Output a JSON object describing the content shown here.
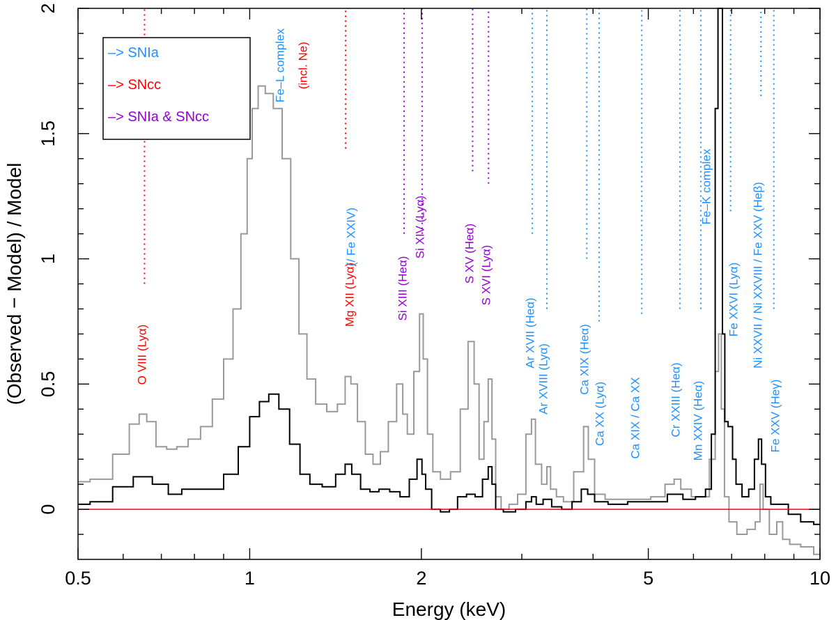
{
  "chart_data": {
    "type": "line",
    "title": "",
    "xlabel": "Energy (keV)",
    "ylabel": "(Observed − Model) / Model",
    "xscale": "log",
    "xlim": [
      0.5,
      10
    ],
    "ylim": [
      -0.2,
      2
    ],
    "x_ticks": [
      {
        "v": 0.5,
        "label": "0.5"
      },
      {
        "v": 1,
        "label": "1"
      },
      {
        "v": 2,
        "label": "2"
      },
      {
        "v": 5,
        "label": "5"
      },
      {
        "v": 10,
        "label": "10"
      }
    ],
    "y_ticks": [
      {
        "v": 0,
        "label": "0"
      },
      {
        "v": 0.5,
        "label": "0.5"
      },
      {
        "v": 1,
        "label": "1"
      },
      {
        "v": 1.5,
        "label": "1.5"
      },
      {
        "v": 2,
        "label": "2"
      }
    ],
    "reference_line": {
      "y": 0,
      "color": "#ff0000"
    },
    "colors": {
      "snia": "#1e90ff",
      "sncc": "#ff0000",
      "both": "#9400d3"
    },
    "legend": {
      "placement": "top-left",
      "entries": [
        {
          "text": "–> SNIa",
          "color": "#1e90ff"
        },
        {
          "text": "–> SNcc",
          "color": "#ff0000"
        },
        {
          "text": "–> SNIa & SNcc",
          "color": "#9400d3"
        }
      ]
    },
    "series": [
      {
        "name": "gray residuals",
        "color": "#999999",
        "points": [
          [
            0.5,
            0.11
          ],
          [
            0.55,
            0.12
          ],
          [
            0.6,
            0.22
          ],
          [
            0.63,
            0.34
          ],
          [
            0.65,
            0.38
          ],
          [
            0.67,
            0.35
          ],
          [
            0.7,
            0.25
          ],
          [
            0.73,
            0.24
          ],
          [
            0.76,
            0.25
          ],
          [
            0.8,
            0.28
          ],
          [
            0.84,
            0.33
          ],
          [
            0.88,
            0.44
          ],
          [
            0.92,
            0.6
          ],
          [
            0.95,
            0.8
          ],
          [
            0.98,
            1.1
          ],
          [
            1.0,
            1.4
          ],
          [
            1.02,
            1.6
          ],
          [
            1.05,
            1.69
          ],
          [
            1.08,
            1.66
          ],
          [
            1.12,
            1.6
          ],
          [
            1.16,
            1.4
          ],
          [
            1.2,
            1.0
          ],
          [
            1.24,
            0.7
          ],
          [
            1.28,
            0.52
          ],
          [
            1.33,
            0.42
          ],
          [
            1.4,
            0.39
          ],
          [
            1.45,
            0.42
          ],
          [
            1.49,
            0.53
          ],
          [
            1.52,
            0.5
          ],
          [
            1.57,
            0.35
          ],
          [
            1.62,
            0.22
          ],
          [
            1.67,
            0.18
          ],
          [
            1.72,
            0.23
          ],
          [
            1.78,
            0.35
          ],
          [
            1.84,
            0.5
          ],
          [
            1.87,
            0.38
          ],
          [
            1.91,
            0.3
          ],
          [
            1.97,
            0.55
          ],
          [
            2.0,
            0.78
          ],
          [
            2.03,
            0.6
          ],
          [
            2.07,
            0.3
          ],
          [
            2.12,
            0.15
          ],
          [
            2.2,
            0.12
          ],
          [
            2.3,
            0.15
          ],
          [
            2.38,
            0.4
          ],
          [
            2.45,
            0.67
          ],
          [
            2.5,
            0.5
          ],
          [
            2.55,
            0.2
          ],
          [
            2.6,
            0.35
          ],
          [
            2.64,
            0.52
          ],
          [
            2.68,
            0.28
          ],
          [
            2.72,
            0.05
          ],
          [
            2.8,
            0.0
          ],
          [
            2.9,
            0.02
          ],
          [
            3.0,
            0.06
          ],
          [
            3.1,
            0.3
          ],
          [
            3.14,
            0.36
          ],
          [
            3.2,
            0.18
          ],
          [
            3.3,
            0.1
          ],
          [
            3.34,
            0.17
          ],
          [
            3.4,
            0.08
          ],
          [
            3.5,
            0.05
          ],
          [
            3.6,
            0.03
          ],
          [
            3.8,
            0.15
          ],
          [
            3.9,
            0.33
          ],
          [
            3.95,
            0.2
          ],
          [
            4.1,
            0.06
          ],
          [
            4.3,
            0.04
          ],
          [
            4.6,
            0.04
          ],
          [
            4.9,
            0.04
          ],
          [
            5.2,
            0.05
          ],
          [
            5.5,
            0.1
          ],
          [
            5.6,
            0.12
          ],
          [
            5.8,
            0.08
          ],
          [
            6.1,
            0.05
          ],
          [
            6.3,
            0.05
          ],
          [
            6.5,
            0.2
          ],
          [
            6.6,
            0.55
          ],
          [
            6.68,
            0.7
          ],
          [
            6.75,
            0.4
          ],
          [
            6.85,
            0.05
          ],
          [
            7.0,
            -0.05
          ],
          [
            7.3,
            -0.1
          ],
          [
            7.6,
            -0.08
          ],
          [
            7.8,
            -0.05
          ],
          [
            7.9,
            0.1
          ],
          [
            8.0,
            0.0
          ],
          [
            8.3,
            -0.1
          ],
          [
            8.5,
            -0.05
          ],
          [
            8.7,
            -0.12
          ],
          [
            9.0,
            -0.14
          ],
          [
            9.5,
            -0.15
          ],
          [
            10.0,
            -0.18
          ]
        ]
      },
      {
        "name": "black residuals",
        "color": "#000000",
        "points": [
          [
            0.5,
            0.02
          ],
          [
            0.55,
            0.03
          ],
          [
            0.6,
            0.09
          ],
          [
            0.65,
            0.13
          ],
          [
            0.7,
            0.1
          ],
          [
            0.74,
            0.06
          ],
          [
            0.78,
            0.08
          ],
          [
            0.82,
            0.08
          ],
          [
            0.87,
            0.08
          ],
          [
            0.93,
            0.14
          ],
          [
            0.98,
            0.25
          ],
          [
            1.02,
            0.37
          ],
          [
            1.06,
            0.43
          ],
          [
            1.1,
            0.46
          ],
          [
            1.15,
            0.4
          ],
          [
            1.2,
            0.26
          ],
          [
            1.25,
            0.14
          ],
          [
            1.3,
            0.1
          ],
          [
            1.38,
            0.09
          ],
          [
            1.45,
            0.14
          ],
          [
            1.49,
            0.18
          ],
          [
            1.53,
            0.14
          ],
          [
            1.6,
            0.08
          ],
          [
            1.65,
            0.07
          ],
          [
            1.72,
            0.08
          ],
          [
            1.8,
            0.07
          ],
          [
            1.87,
            0.05
          ],
          [
            1.94,
            0.12
          ],
          [
            1.99,
            0.2
          ],
          [
            2.02,
            0.14
          ],
          [
            2.05,
            0.08
          ],
          [
            2.12,
            0.0
          ],
          [
            2.2,
            -0.01
          ],
          [
            2.28,
            0.0
          ],
          [
            2.35,
            0.05
          ],
          [
            2.45,
            0.06
          ],
          [
            2.52,
            0.05
          ],
          [
            2.6,
            0.12
          ],
          [
            2.64,
            0.17
          ],
          [
            2.68,
            0.1
          ],
          [
            2.72,
            0.0
          ],
          [
            2.85,
            -0.01
          ],
          [
            3.0,
            0.0
          ],
          [
            3.1,
            0.03
          ],
          [
            3.14,
            0.05
          ],
          [
            3.22,
            0.02
          ],
          [
            3.32,
            0.04
          ],
          [
            3.45,
            0.01
          ],
          [
            3.6,
            0.0
          ],
          [
            3.75,
            0.03
          ],
          [
            3.88,
            0.08
          ],
          [
            3.95,
            0.06
          ],
          [
            4.1,
            0.03
          ],
          [
            4.4,
            0.02
          ],
          [
            4.8,
            0.03
          ],
          [
            5.2,
            0.03
          ],
          [
            5.6,
            0.06
          ],
          [
            5.9,
            0.04
          ],
          [
            6.2,
            0.05
          ],
          [
            6.4,
            0.08
          ],
          [
            6.5,
            0.3
          ],
          [
            6.6,
            1.6
          ],
          [
            6.65,
            2.0
          ],
          [
            6.72,
            2.0
          ],
          [
            6.77,
            0.7
          ],
          [
            6.85,
            0.35
          ],
          [
            6.95,
            0.33
          ],
          [
            7.0,
            0.33
          ],
          [
            7.05,
            0.2
          ],
          [
            7.2,
            0.1
          ],
          [
            7.4,
            0.05
          ],
          [
            7.6,
            0.08
          ],
          [
            7.75,
            0.2
          ],
          [
            7.85,
            0.28
          ],
          [
            7.95,
            0.18
          ],
          [
            8.1,
            0.05
          ],
          [
            8.3,
            0.02
          ],
          [
            8.6,
            0.02
          ],
          [
            9.0,
            -0.02
          ],
          [
            9.5,
            -0.05
          ],
          [
            10.0,
            -0.06
          ]
        ]
      }
    ],
    "line_markers": [
      {
        "label": "O VIII (Lyα)",
        "energy": 0.654,
        "y_from": 0.9,
        "y_to": 2.0,
        "kind": "sncc"
      },
      {
        "label": "Fe–L complex",
        "energy": 1.08,
        "kind": "snia",
        "no_line": true
      },
      {
        "label": "(incl. Ne)",
        "energy": 1.16,
        "kind": "sncc",
        "no_line": true
      },
      {
        "label": "Mg XII (Lyα)",
        "energy": 1.473,
        "y_from": 1.44,
        "y_to": 2.0,
        "kind": "sncc"
      },
      {
        "label": "(/ Fe XXIV)",
        "energy": 1.56,
        "kind": "snia",
        "no_line": true
      },
      {
        "label": "Si XIII (Heα)",
        "energy": 1.865,
        "y_from": 1.1,
        "y_to": 2.0,
        "kind": "both"
      },
      {
        "label": "Si XIV (Lyα)",
        "energy": 2.006,
        "y_from": 1.1,
        "y_to": 2.0,
        "kind": "both"
      },
      {
        "label": "S XV (Heα)",
        "energy": 2.46,
        "y_from": 1.35,
        "y_to": 2.0,
        "kind": "both"
      },
      {
        "label": "S XVI (Lyα)",
        "energy": 2.623,
        "y_from": 1.3,
        "y_to": 2.0,
        "kind": "both"
      },
      {
        "label": "Ar XVII (Heα)",
        "energy": 3.13,
        "y_from": 1.1,
        "y_to": 2.0,
        "kind": "snia"
      },
      {
        "label": "Ar XVIII (Lyα)",
        "energy": 3.32,
        "y_from": 0.8,
        "y_to": 2.0,
        "kind": "snia"
      },
      {
        "label": "Ca XIX (Heα)",
        "energy": 3.9,
        "y_from": 1.0,
        "y_to": 2.0,
        "kind": "snia"
      },
      {
        "label": "Ca XX (Lyα)",
        "energy": 4.1,
        "y_from": 0.75,
        "y_to": 2.0,
        "kind": "snia"
      },
      {
        "label": "Ca XIX / Ca XX",
        "energy": 4.87,
        "y_from": 0.78,
        "y_to": 2.0,
        "kind": "snia"
      },
      {
        "label": "Cr XXIII (Heα)",
        "energy": 5.68,
        "y_from": 0.8,
        "y_to": 2.0,
        "kind": "snia"
      },
      {
        "label": "Mn XXIV (Heα)",
        "energy": 6.18,
        "y_from": 0.8,
        "y_to": 2.0,
        "kind": "snia"
      },
      {
        "label": "Fe–K complex",
        "energy": 6.52,
        "kind": "snia",
        "no_line": true
      },
      {
        "label": "Fe XXVI (Lyα)",
        "energy": 6.97,
        "y_from": 1.19,
        "y_to": 2.0,
        "kind": "snia"
      },
      {
        "label": "Ni XXVII / Ni XXVIII / Fe XXV (Heβ)",
        "energy": 7.88,
        "y_from": 1.65,
        "y_to": 2.0,
        "kind": "snia"
      },
      {
        "label": "Fe XXV (Heγ)",
        "energy": 8.3,
        "y_from": 0.8,
        "y_to": 2.0,
        "kind": "snia"
      }
    ]
  }
}
